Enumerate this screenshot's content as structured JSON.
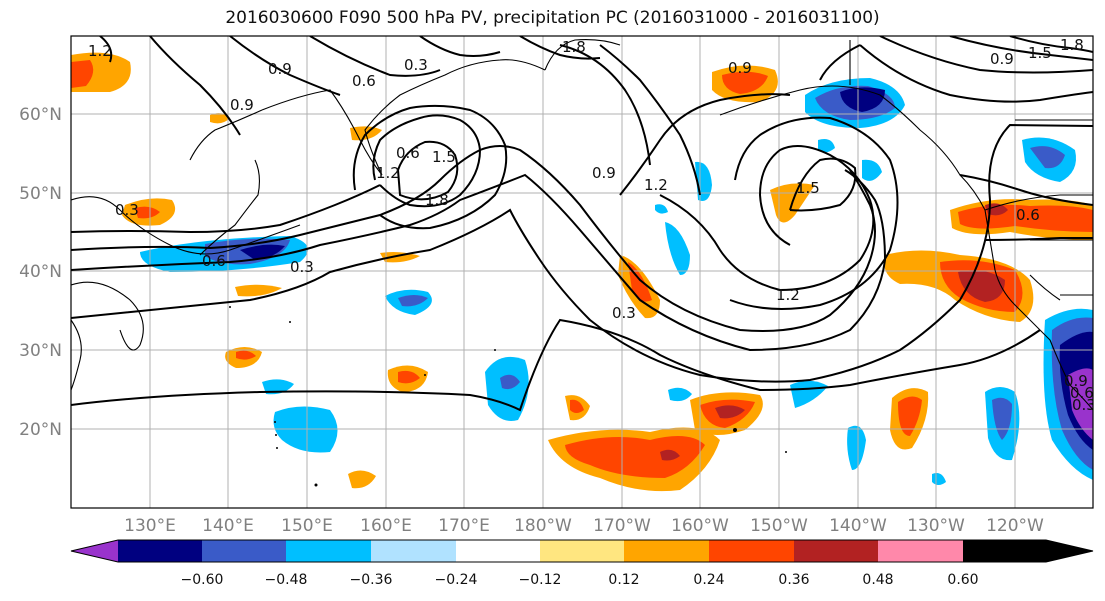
{
  "title": "2016030600 F090 500 hPa PV, precipitation PC (2016031000 - 2016031100)",
  "map": {
    "lat_labels": [
      "60°N",
      "50°N",
      "40°N",
      "30°N",
      "20°N"
    ],
    "lon_labels": [
      "130°E",
      "140°E",
      "150°E",
      "160°E",
      "170°E",
      "180°W",
      "170°W",
      "160°W",
      "150°W",
      "140°W",
      "130°W",
      "120°W"
    ],
    "contour_labels": [
      "1.2",
      "0.9",
      "0.6",
      "0.3",
      "0.9",
      "1.8",
      "0.3",
      "0.6",
      "1.5",
      "1.8",
      "0.9",
      "1.2",
      "0.9",
      "1.5",
      "1.2",
      "0.3",
      "0.6",
      "0.9",
      "1.5",
      "1.8",
      "1.2",
      "0.6",
      "0.3",
      "0.9",
      "0.6",
      "0.3"
    ]
  },
  "colorbar": {
    "colors": [
      "#9933cc",
      "#000080",
      "#3a5bc8",
      "#00bfff",
      "#b0e2ff",
      "#ffffff",
      "#ffe680",
      "#ffa500",
      "#ff4500",
      "#b22222",
      "#ff88aa"
    ],
    "tick_labels": [
      "−0.60",
      "−0.48",
      "−0.36",
      "−0.24",
      "−0.12",
      "0.12",
      "0.24",
      "0.36",
      "0.48",
      "0.60"
    ]
  }
}
